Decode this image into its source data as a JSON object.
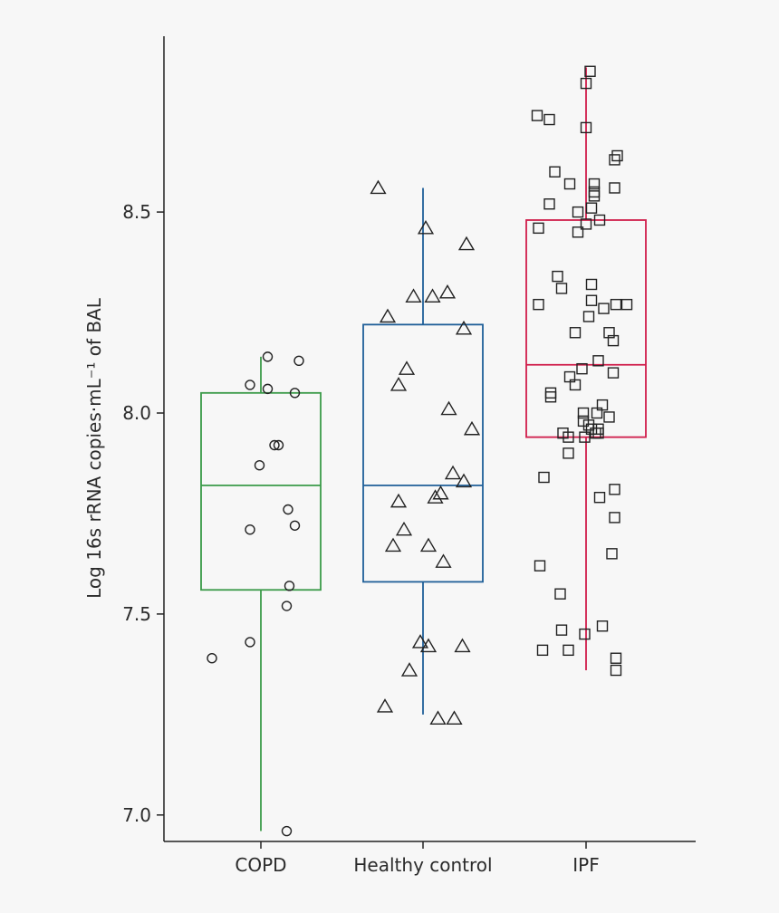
{
  "chart_data": {
    "type": "box",
    "ylabel": "Log 16s rRNA copies·mL⁻¹ of BAL",
    "ylim": [
      6.93,
      8.89
    ],
    "yticks": [
      7.0,
      7.5,
      8.0,
      8.5
    ],
    "ytick_labels": [
      "7.0",
      "7.5",
      "8.0",
      "8.5"
    ],
    "categories": [
      "COPD",
      "Healthy control",
      "IPF"
    ],
    "grid": false,
    "groups": [
      {
        "category": "COPD",
        "color": "#3a9a48",
        "marker": "circle",
        "box": {
          "q1": 7.56,
          "median": 7.82,
          "q3": 8.05,
          "whisker_low": 6.96,
          "whisker_high": 8.14
        },
        "points": [
          {
            "j": 0.05,
            "y": 8.14
          },
          {
            "j": 0.28,
            "y": 8.13
          },
          {
            "j": -0.08,
            "y": 8.07
          },
          {
            "j": 0.05,
            "y": 8.06
          },
          {
            "j": 0.25,
            "y": 8.05
          },
          {
            "j": 0.1,
            "y": 7.92
          },
          {
            "j": 0.13,
            "y": 7.92
          },
          {
            "j": -0.01,
            "y": 7.87
          },
          {
            "j": 0.2,
            "y": 7.76
          },
          {
            "j": 0.25,
            "y": 7.72
          },
          {
            "j": -0.08,
            "y": 7.71
          },
          {
            "j": 0.21,
            "y": 7.57
          },
          {
            "j": 0.19,
            "y": 7.52
          },
          {
            "j": -0.08,
            "y": 7.43
          },
          {
            "j": -0.36,
            "y": 7.39
          },
          {
            "j": 0.19,
            "y": 6.96
          }
        ]
      },
      {
        "category": "Healthy control",
        "color": "#1f5f98",
        "marker": "triangle",
        "box": {
          "q1": 7.58,
          "median": 7.82,
          "q3": 8.22,
          "whisker_low": 7.25,
          "whisker_high": 8.56
        },
        "points": [
          {
            "j": -0.33,
            "y": 8.56
          },
          {
            "j": 0.02,
            "y": 8.46
          },
          {
            "j": 0.32,
            "y": 8.42
          },
          {
            "j": 0.18,
            "y": 8.3
          },
          {
            "j": -0.07,
            "y": 8.29
          },
          {
            "j": 0.07,
            "y": 8.29
          },
          {
            "j": -0.26,
            "y": 8.24
          },
          {
            "j": 0.3,
            "y": 8.21
          },
          {
            "j": -0.12,
            "y": 8.11
          },
          {
            "j": -0.18,
            "y": 8.07
          },
          {
            "j": 0.19,
            "y": 8.01
          },
          {
            "j": 0.36,
            "y": 7.96
          },
          {
            "j": 0.22,
            "y": 7.85
          },
          {
            "j": 0.3,
            "y": 7.83
          },
          {
            "j": 0.13,
            "y": 7.8
          },
          {
            "j": -0.18,
            "y": 7.78
          },
          {
            "j": 0.09,
            "y": 7.79
          },
          {
            "j": -0.14,
            "y": 7.71
          },
          {
            "j": -0.22,
            "y": 7.67
          },
          {
            "j": 0.04,
            "y": 7.67
          },
          {
            "j": 0.15,
            "y": 7.63
          },
          {
            "j": -0.02,
            "y": 7.43
          },
          {
            "j": 0.04,
            "y": 7.42
          },
          {
            "j": 0.29,
            "y": 7.42
          },
          {
            "j": -0.1,
            "y": 7.36
          },
          {
            "j": -0.28,
            "y": 7.27
          },
          {
            "j": 0.11,
            "y": 7.24
          },
          {
            "j": 0.23,
            "y": 7.24
          }
        ]
      },
      {
        "category": "IPF",
        "color": "#d01c4a",
        "marker": "square",
        "box": {
          "q1": 7.94,
          "median": 8.12,
          "q3": 8.48,
          "whisker_low": 7.36,
          "whisker_high": 8.86
        },
        "points": [
          {
            "j": 0.03,
            "y": 8.85
          },
          {
            "j": 0.0,
            "y": 8.82
          },
          {
            "j": -0.36,
            "y": 8.74
          },
          {
            "j": -0.27,
            "y": 8.73
          },
          {
            "j": 0.0,
            "y": 8.71
          },
          {
            "j": 0.23,
            "y": 8.64
          },
          {
            "j": 0.21,
            "y": 8.63
          },
          {
            "j": -0.23,
            "y": 8.6
          },
          {
            "j": -0.12,
            "y": 8.57
          },
          {
            "j": 0.06,
            "y": 8.57
          },
          {
            "j": 0.21,
            "y": 8.56
          },
          {
            "j": 0.06,
            "y": 8.55
          },
          {
            "j": 0.06,
            "y": 8.54
          },
          {
            "j": -0.27,
            "y": 8.52
          },
          {
            "j": 0.04,
            "y": 8.51
          },
          {
            "j": -0.06,
            "y": 8.5
          },
          {
            "j": 0.1,
            "y": 8.48
          },
          {
            "j": 0.0,
            "y": 8.47
          },
          {
            "j": -0.35,
            "y": 8.46
          },
          {
            "j": -0.06,
            "y": 8.45
          },
          {
            "j": -0.21,
            "y": 8.34
          },
          {
            "j": -0.18,
            "y": 8.31
          },
          {
            "j": 0.04,
            "y": 8.32
          },
          {
            "j": 0.04,
            "y": 8.28
          },
          {
            "j": -0.35,
            "y": 8.27
          },
          {
            "j": 0.22,
            "y": 8.27
          },
          {
            "j": 0.3,
            "y": 8.27
          },
          {
            "j": 0.13,
            "y": 8.26
          },
          {
            "j": 0.02,
            "y": 8.24
          },
          {
            "j": -0.08,
            "y": 8.2
          },
          {
            "j": 0.17,
            "y": 8.2
          },
          {
            "j": 0.2,
            "y": 8.18
          },
          {
            "j": 0.09,
            "y": 8.13
          },
          {
            "j": -0.03,
            "y": 8.11
          },
          {
            "j": 0.2,
            "y": 8.1
          },
          {
            "j": -0.12,
            "y": 8.09
          },
          {
            "j": -0.08,
            "y": 8.07
          },
          {
            "j": -0.26,
            "y": 8.05
          },
          {
            "j": -0.26,
            "y": 8.04
          },
          {
            "j": 0.12,
            "y": 8.02
          },
          {
            "j": -0.02,
            "y": 8.0
          },
          {
            "j": 0.08,
            "y": 8.0
          },
          {
            "j": 0.17,
            "y": 7.99
          },
          {
            "j": -0.02,
            "y": 7.98
          },
          {
            "j": 0.02,
            "y": 7.97
          },
          {
            "j": 0.04,
            "y": 7.96
          },
          {
            "j": 0.09,
            "y": 7.96
          },
          {
            "j": 0.07,
            "y": 7.95
          },
          {
            "j": -0.17,
            "y": 7.95
          },
          {
            "j": -0.13,
            "y": 7.94
          },
          {
            "j": -0.01,
            "y": 7.94
          },
          {
            "j": 0.09,
            "y": 7.95
          },
          {
            "j": -0.13,
            "y": 7.9
          },
          {
            "j": -0.31,
            "y": 7.84
          },
          {
            "j": 0.21,
            "y": 7.81
          },
          {
            "j": 0.1,
            "y": 7.79
          },
          {
            "j": 0.21,
            "y": 7.74
          },
          {
            "j": 0.19,
            "y": 7.65
          },
          {
            "j": -0.34,
            "y": 7.62
          },
          {
            "j": -0.19,
            "y": 7.55
          },
          {
            "j": 0.12,
            "y": 7.47
          },
          {
            "j": -0.18,
            "y": 7.46
          },
          {
            "j": -0.01,
            "y": 7.45
          },
          {
            "j": -0.32,
            "y": 7.41
          },
          {
            "j": -0.13,
            "y": 7.41
          },
          {
            "j": 0.22,
            "y": 7.39
          },
          {
            "j": 0.22,
            "y": 7.36
          }
        ]
      }
    ]
  }
}
